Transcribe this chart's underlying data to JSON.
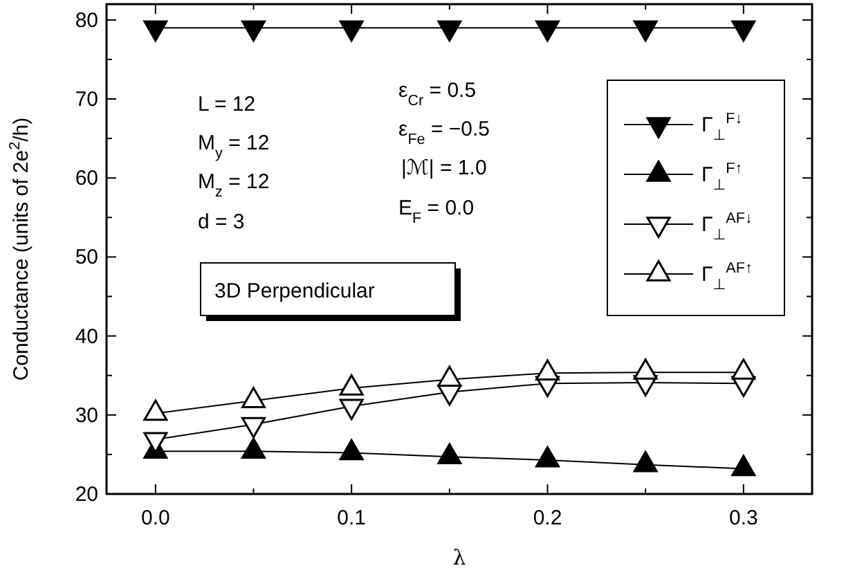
{
  "chart_data": {
    "type": "line",
    "xlabel": "λ",
    "ylabel": "Conductance (units of 2e$^{2}$/h)",
    "x": [
      0,
      0.05,
      0.1,
      0.15,
      0.2,
      0.25,
      0.3
    ],
    "xlim": [
      -0.025,
      0.335
    ],
    "ylim": [
      20,
      82
    ],
    "xticks": [
      {
        "value": 0,
        "label": "0.0"
      },
      {
        "value": 0.05,
        "label": null
      },
      {
        "value": 0.1,
        "label": "0.1"
      },
      {
        "value": 0.15,
        "label": null
      },
      {
        "value": 0.2,
        "label": "0.2"
      },
      {
        "value": 0.25,
        "label": null
      },
      {
        "value": 0.3,
        "label": "0.3"
      }
    ],
    "yticks": [
      20,
      {
        "value": 25,
        "label": null
      },
      30,
      {
        "value": 35,
        "label": null
      },
      40,
      {
        "value": 45,
        "label": null
      },
      50,
      {
        "value": 55,
        "label": null
      },
      60,
      {
        "value": 65,
        "label": null
      },
      70,
      {
        "value": 75,
        "label": null
      },
      80
    ],
    "legend": "top right",
    "line_style": "solid",
    "series": [
      {
        "name": "Γ$_{⊥}$$^{F↓}$",
        "color": "#000000",
        "marker": "triangle-down",
        "values": [
          79,
          79,
          79,
          79,
          79,
          79,
          79
        ]
      },
      {
        "name": "Γ$_{⊥}$$^{F↑}$",
        "color": "#000000",
        "marker": "triangle",
        "values": [
          25.4,
          25.4,
          25.2,
          24.7,
          24.3,
          23.7,
          23.2
        ]
      },
      {
        "name": "Γ$_{⊥}$$^{AF↓}$",
        "color": "#000000",
        "marker": "triangle-down-open",
        "values": [
          26.9,
          28.8,
          31.1,
          32.9,
          34.0,
          34.1,
          34.0
        ]
      },
      {
        "name": "Γ$_{⊥}$$^{AF↑}$",
        "color": "#000000",
        "marker": "triangle-open",
        "values": [
          30.2,
          31.8,
          33.4,
          34.5,
          35.3,
          35.4,
          35.4
        ]
      }
    ],
    "annotations": [
      "L = 12",
      "M$_{y}$ = 12",
      "M$_{z}$ = 12",
      "d = 3",
      "ε$_{Cr}$ = 0.5",
      "ε$_{Fe}$ = −0.5",
      "|ℳ| = 1.0",
      "E$_{F}$ = 0.0",
      "3D Perpendicular"
    ]
  }
}
